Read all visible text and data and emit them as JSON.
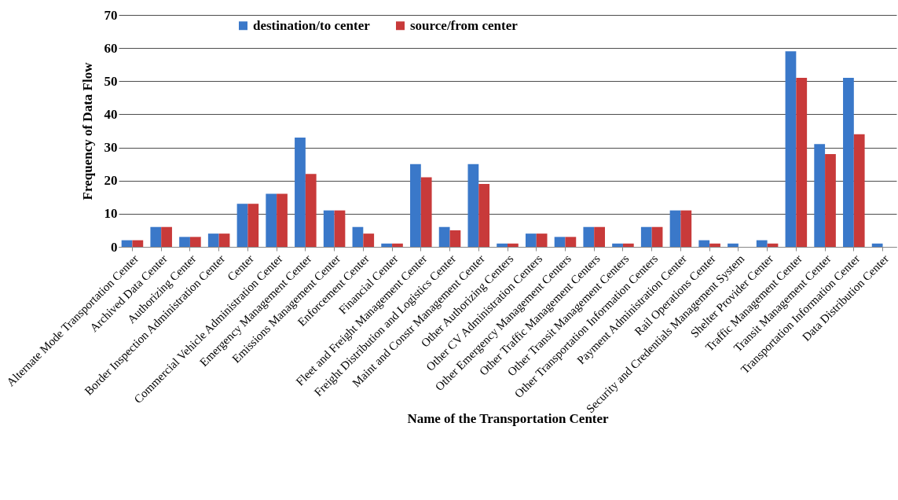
{
  "chart_data": {
    "type": "bar",
    "xlabel": "Name of the Transportation Center",
    "ylabel": "Frequency of Data Flow",
    "categories": [
      "Alternate Mode Transportation Center",
      "Archived Data Center",
      "Authorizing Center",
      "Border Inspection Administration Center",
      "Center",
      "Commercial Vehicle Administration Center",
      "Emergency Management Center",
      "Emissions Management Center",
      "Enforcement Center",
      "Financial Center",
      "Fleet and Freight Management Center",
      "Freight Distribution and Logistics Center",
      "Maint and Constr Management Center",
      "Other Authorizing Centers",
      "Other CV Administration Centers",
      "Other Emergency Management Centers",
      "Other Traffic Management Centers",
      "Other Transit Management Centers",
      "Other Transportation Information Centers",
      "Payment Administration Center",
      "Rail Operations Center",
      "Security and Credentials Management System",
      "Shelter Provider Center",
      "Traffic Management Center",
      "Transit Management Center",
      "Transportation Information Center",
      "Data Distribution Center"
    ],
    "series": [
      {
        "name": "destination/to center",
        "color": "#3a78c9",
        "values": [
          2,
          6,
          3,
          4,
          13,
          16,
          33,
          11,
          6,
          1,
          25,
          6,
          25,
          1,
          4,
          3,
          6,
          1,
          6,
          11,
          2,
          1,
          2,
          59,
          31,
          51,
          1
        ]
      },
      {
        "name": "source/from center",
        "color": "#c83a3a",
        "values": [
          2,
          6,
          3,
          4,
          13,
          16,
          22,
          11,
          4,
          1,
          21,
          5,
          19,
          1,
          4,
          3,
          6,
          1,
          6,
          11,
          1,
          0,
          1,
          51,
          28,
          34,
          0
        ]
      }
    ],
    "ylim": [
      0,
      70
    ],
    "yticks": [
      0,
      10,
      20,
      30,
      40,
      50,
      60,
      70
    ],
    "grid": "y",
    "legend": "top left"
  }
}
